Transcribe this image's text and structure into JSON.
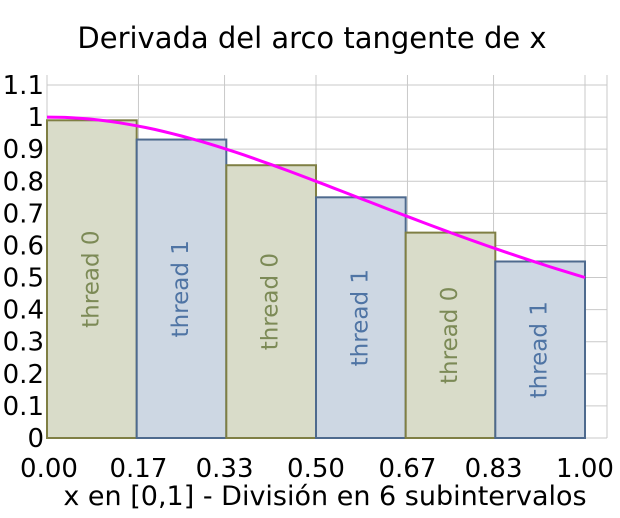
{
  "chart_data": {
    "type": "bar",
    "title": "Derivada del arco tangente de x",
    "xlabel": "x en [0,1] - División en 6 subintervalos",
    "ylabel": "",
    "xlim": [
      0,
      1
    ],
    "ylim": [
      0,
      1.1
    ],
    "x_ticks": [
      "0.00",
      "0.17",
      "0.33",
      "0.50",
      "0.67",
      "0.83",
      "1.00"
    ],
    "y_ticks": [
      "0",
      "0.1",
      "0.2",
      "0.3",
      "0.4",
      "0.5",
      "0.6",
      "0.7",
      "0.8",
      "0.9",
      "1",
      "1.1"
    ],
    "grid": true,
    "bars": [
      {
        "x0": 0.0,
        "x1": 0.1667,
        "value": 0.99,
        "label": "thread 0"
      },
      {
        "x0": 0.1667,
        "x1": 0.3333,
        "value": 0.93,
        "label": "thread 1"
      },
      {
        "x0": 0.3333,
        "x1": 0.5,
        "value": 0.85,
        "label": "thread 0"
      },
      {
        "x0": 0.5,
        "x1": 0.6667,
        "value": 0.75,
        "label": "thread 1"
      },
      {
        "x0": 0.6667,
        "x1": 0.8333,
        "value": 0.64,
        "label": "thread 0"
      },
      {
        "x0": 0.8333,
        "x1": 1.0,
        "value": 0.55,
        "label": "thread 1"
      }
    ],
    "curve": {
      "function": "1/(1+x^2)",
      "x": [
        0,
        0.1,
        0.2,
        0.3,
        0.4,
        0.5,
        0.6,
        0.7,
        0.8,
        0.9,
        1.0
      ],
      "y": [
        1.0,
        0.99,
        0.962,
        0.917,
        0.862,
        0.8,
        0.735,
        0.671,
        0.61,
        0.552,
        0.5
      ]
    },
    "colors": {
      "thread0_fill": "#d9dcc9",
      "thread0_stroke": "#7f7f44",
      "thread0_text": "#7c8a56",
      "thread1_fill": "#cdd7e3",
      "thread1_stroke": "#4e6a8e",
      "thread1_text": "#4f74a4",
      "curve": "#ff00ff",
      "grid": "#c9c9c9"
    }
  }
}
